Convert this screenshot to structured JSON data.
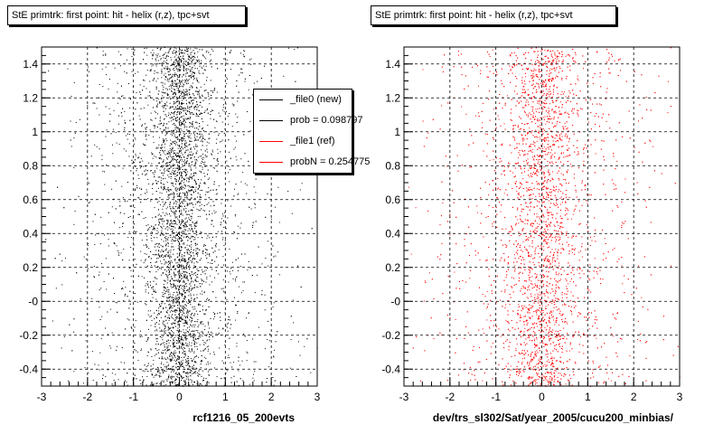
{
  "chart_data": [
    {
      "type": "scatter",
      "title": "StE primtrk: first point: hit - helix (r,z), tpc+svt",
      "xlabel": "rcf1216_05_200evts",
      "ylabel": "",
      "xlim": [
        -3,
        3
      ],
      "ylim": [
        -0.5,
        1.5
      ],
      "x_ticks": [
        "-3",
        "-2",
        "-1",
        "0",
        "1",
        "2",
        "3"
      ],
      "y_ticks": [
        "-0.4",
        "-0.2",
        "-0",
        "0.2",
        "0.4",
        "0.6",
        "0.8",
        "1",
        "1.2",
        "1.4"
      ],
      "grid": true,
      "marker_color": "#000000",
      "series": [
        {
          "distribution": {
            "center_x": 0.0,
            "core_sigma_x": 0.3,
            "tail_sigma_x": 1.1,
            "core_fraction": 0.62,
            "n_points": 5500
          }
        }
      ],
      "legend": {
        "placement": "top-right",
        "entries": [
          {
            "label": "_file0 (new)",
            "color": "#000000"
          },
          {
            "label": "prob = 0.098797",
            "color": "#000000"
          },
          {
            "label": "_file1 (ref)",
            "color": "#ff0000"
          },
          {
            "label": "probN = 0.254775",
            "color": "#ff0000"
          }
        ]
      }
    },
    {
      "type": "scatter",
      "title": "StE primtrk: first point: hit - helix (r,z), tpc+svt",
      "xlabel": "dev/trs_sl302/Sat/year_2005/cucu200_minbias/",
      "ylabel": "",
      "xlim": [
        -3,
        3
      ],
      "ylim": [
        -0.5,
        1.5
      ],
      "x_ticks": [
        "-3",
        "-2",
        "-1",
        "0",
        "1",
        "2",
        "3"
      ],
      "y_ticks": [
        "-0.4",
        "-0.2",
        "-0",
        "0.2",
        "0.4",
        "0.6",
        "0.8",
        "1",
        "1.2",
        "1.4"
      ],
      "grid": true,
      "marker_color": "#ff0000",
      "series": [
        {
          "distribution": {
            "center_x": 0.0,
            "core_sigma_x": 0.35,
            "tail_sigma_x": 1.2,
            "core_fraction": 0.55,
            "n_points": 4800
          }
        }
      ]
    }
  ]
}
